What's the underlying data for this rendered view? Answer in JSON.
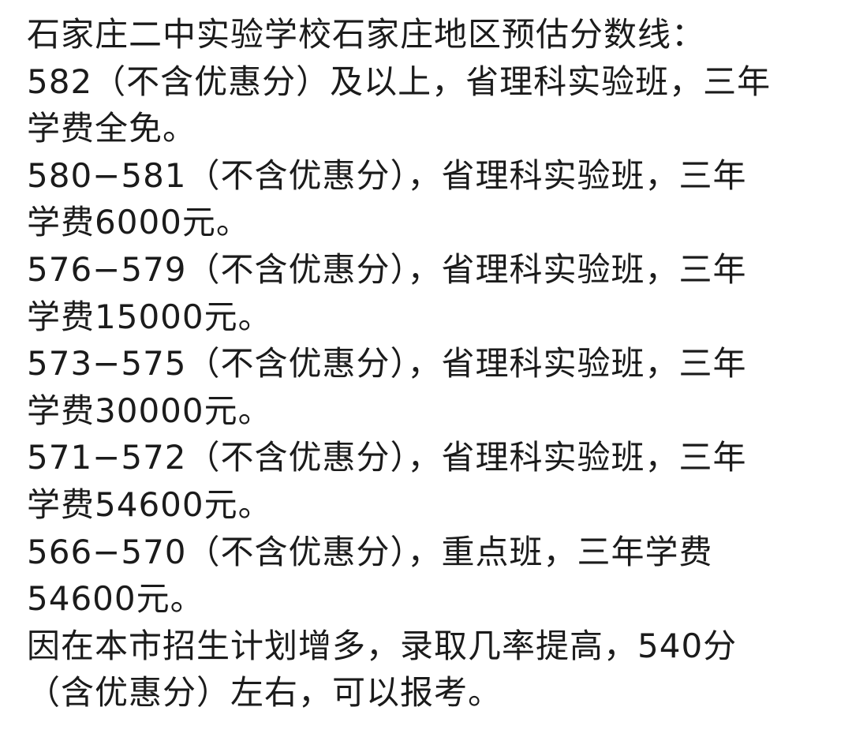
{
  "document": {
    "lines": [
      "石家庄二中实验学校石家庄地区预估分数线：",
      "582（不含优惠分）及以上，省理科实验班，三年",
      "学费全免。",
      "580−581（不含优惠分），省理科实验班，三年",
      "学费6000元。",
      "576−579（不含优惠分），省理科实验班，三年",
      "学费15000元。",
      "573−575（不含优惠分），省理科实验班，三年",
      "学费30000元。",
      "571−572（不含优惠分），省理科实验班，三年",
      "学费54600元。",
      "566−570（不含优惠分），重点班，三年学费",
      "54600元。",
      "因在本市招生计划增多，录取几率提高，540分",
      "（含优惠分）左右，可以报考。"
    ]
  }
}
